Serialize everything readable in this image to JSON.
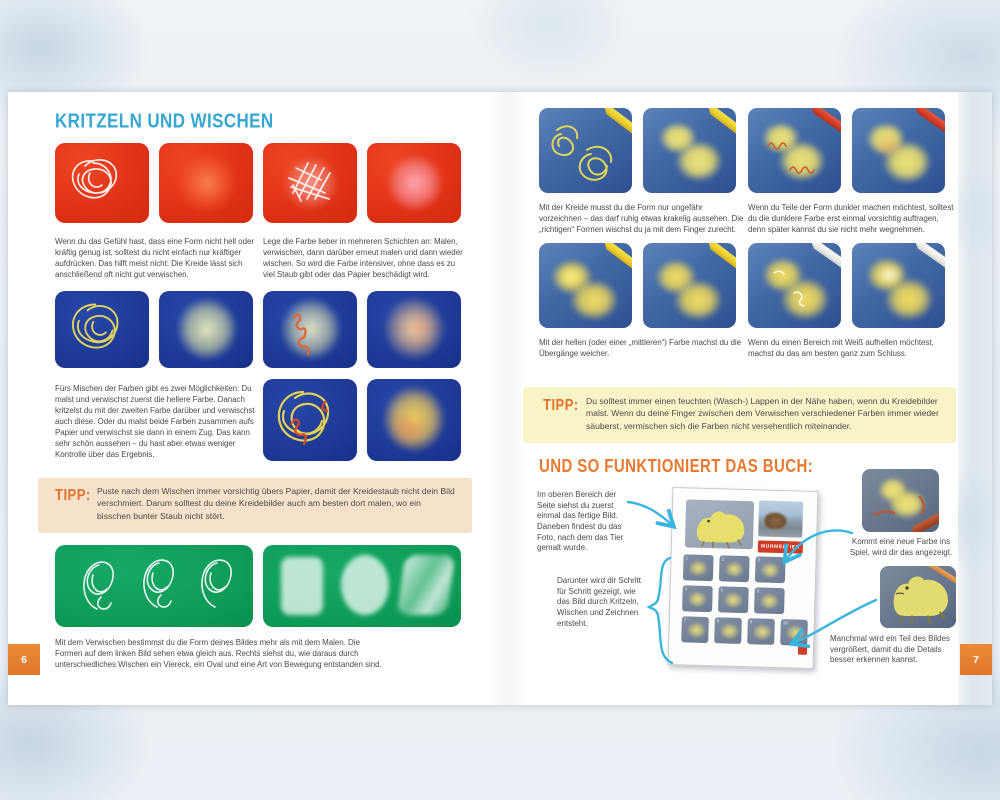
{
  "book": {
    "left_page": {
      "tab": "6",
      "heading": "KRITZELN UND WISCHEN",
      "intro_left": "Wenn du das Gefühl hast, dass eine Form nicht hell oder kräftig genug ist, solltest du nicht einfach nur kräftiger aufdrücken. Das hilft meist nicht: Die Kreide lässt sich anschließend oft nicht gut verwischen.",
      "intro_right": "Lege die Farbe lieber in mehreren Schichten an: Malen, verwischen, dann darüber erneut malen und dann wieder wischen. So wird die Farbe intensiver, ohne dass es zu viel Staub gibt oder das Papier beschädigt wird.",
      "mixing": "Fürs Mischen der Farben gibt es zwei Möglichkeiten: Du malst und verwischst zuerst die hellere Farbe. Danach kritzelst du mit der zweiten Farbe darüber und verwischst auch diese. Oder du malst beide Farben zusammen aufs Papier und verwischst sie dann in einem Zug. Das kann sehr schön aussehen – du hast aber etwas weniger Kontrolle über das Ergebnis.",
      "tip": {
        "label": "TIPP:",
        "text": "Puste nach dem Wischen immer vorsichtig übers Papier, damit der Kreidestaub nicht dein Bild verschmiert. Darum solltest du deine Kreidebilder auch am besten dort malen, wo ein bisschen bunter Staub nicht stört."
      },
      "smudge_note": "Mit dem Verwischen bestimmst du die Form deines Bildes mehr als mit dem Malen. Die Formen auf dem linken Bild sehen etwa gleich aus. Rechts siehst du, wie daraus durch unterschiedliches Wischen ein Viereck, ein Oval und eine Art von Bewegung entstanden sind."
    },
    "right_page": {
      "tab": "7",
      "captions": {
        "sketch": "Mit der Kreide musst du die Form nur ungefähr vorzeichnen – das darf ruhig etwas krakelig aussehen. Die „richtigen“ Formen wischst du ja mit dem Finger zurecht.",
        "darker": "Wenn du Teile der Form dunkler machen möchtest, solltest du die dunklere Farbe erst einmal vorsichtig auftragen, denn später kannst du sie nicht mehr wegnehmen.",
        "lighter": "Mit der hellen (oder einer „mittleren“) Farbe machst du die Übergänge weicher.",
        "white": "Wenn du einen Bereich mit Weiß aufhellen möchtest, machst du das am besten ganz zum Schluss."
      },
      "tip": {
        "label": "TIPP:",
        "text": "Du solltest immer einen feuchten (Wasch-) Lappen in der Nähe haben, wenn du Kreidebilder malst. Wenn du deine Finger zwischen dem Verwischen verschiedener Farben immer wieder säuberst, vermischen sich die Farben nicht versehentlich miteinander."
      },
      "how_heading": "UND SO FUNKTIONIERT DAS BUCH:",
      "explainer": {
        "top_text": "Im oberen Bereich der Seite siehst du zuerst einmal das fertige Bild. Daneben findest du das Foto, nach dem das Tier gemalt wurde.",
        "steps_text": "Darunter wird dir Schritt für Schritt gezeigt, wie das Bild durch Kritzeln, Wischen und Zeichnen entsteht.",
        "new_color_caption": "Kommt eine neue Farbe ins Spiel, wird dir das angezeigt.",
        "zoom_caption": "Manchmal wird ein Teil des Bildes vergrößert, damit du die Details besser erkennen kannst.",
        "mini_page": {
          "banner": "MURMELTIER",
          "steps": [
            "1",
            "2",
            "3",
            "4",
            "5",
            "6",
            "7",
            "8",
            "9",
            "10"
          ]
        }
      }
    }
  }
}
